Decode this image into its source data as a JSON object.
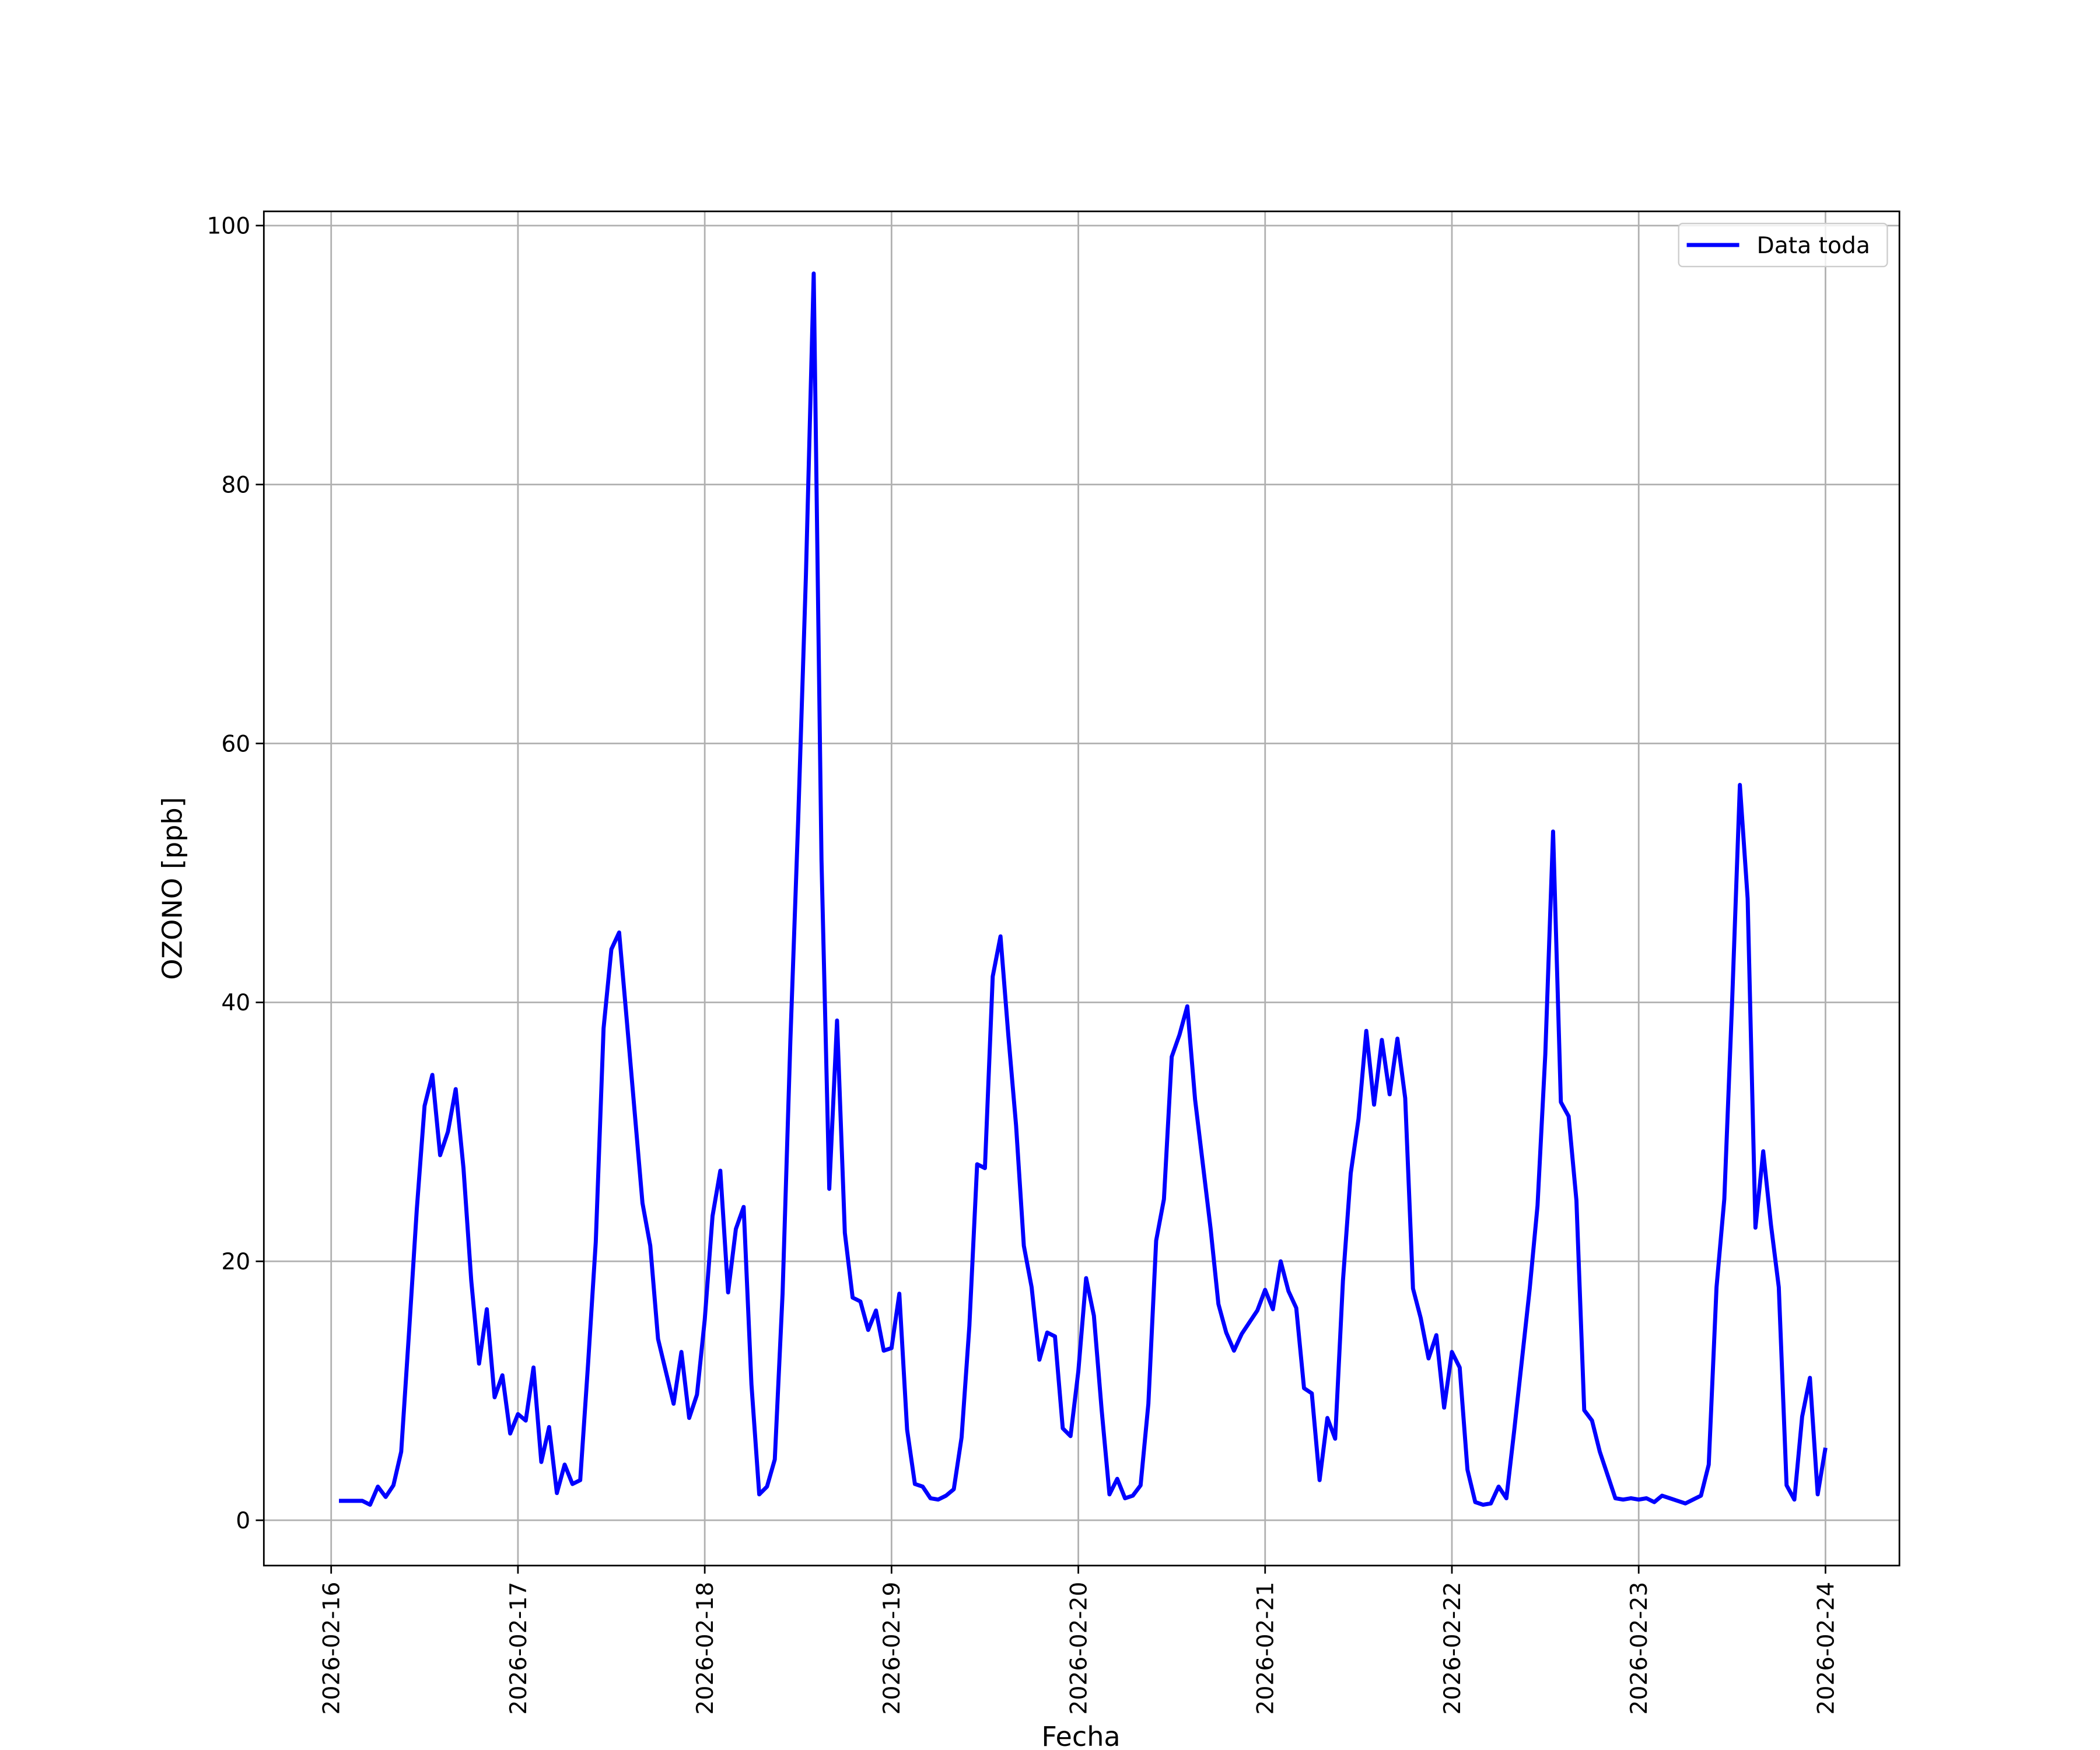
{
  "chart_data": {
    "type": "line",
    "xlabel": "Fecha",
    "ylabel": "OZONO [ppb]",
    "x": [
      "2026-02-16 01:00",
      "2026-02-16 02:00",
      "2026-02-16 03:00",
      "2026-02-16 04:00",
      "2026-02-16 05:00",
      "2026-02-16 06:00",
      "2026-02-16 07:00",
      "2026-02-16 08:00",
      "2026-02-16 09:00",
      "2026-02-16 10:00",
      "2026-02-16 11:00",
      "2026-02-16 12:00",
      "2026-02-16 13:00",
      "2026-02-16 14:00",
      "2026-02-16 15:00",
      "2026-02-16 16:00",
      "2026-02-16 17:00",
      "2026-02-16 18:00",
      "2026-02-16 19:00",
      "2026-02-16 20:00",
      "2026-02-16 21:00",
      "2026-02-16 22:00",
      "2026-02-16 23:00",
      "2026-02-17 00:00",
      "2026-02-17 01:00",
      "2026-02-17 02:00",
      "2026-02-17 03:00",
      "2026-02-17 04:00",
      "2026-02-17 05:00",
      "2026-02-17 06:00",
      "2026-02-17 07:00",
      "2026-02-17 08:00",
      "2026-02-17 09:00",
      "2026-02-17 10:00",
      "2026-02-17 11:00",
      "2026-02-17 12:00",
      "2026-02-17 13:00",
      "2026-02-17 14:00",
      "2026-02-17 15:00",
      "2026-02-17 16:00",
      "2026-02-17 17:00",
      "2026-02-17 18:00",
      "2026-02-17 19:00",
      "2026-02-17 20:00",
      "2026-02-17 21:00",
      "2026-02-17 22:00",
      "2026-02-17 23:00",
      "2026-02-18 00:00",
      "2026-02-18 01:00",
      "2026-02-18 02:00",
      "2026-02-18 03:00",
      "2026-02-18 04:00",
      "2026-02-18 05:00",
      "2026-02-18 06:00",
      "2026-02-18 07:00",
      "2026-02-18 08:00",
      "2026-02-18 09:00",
      "2026-02-18 10:00",
      "2026-02-18 11:00",
      "2026-02-18 12:00",
      "2026-02-18 13:00",
      "2026-02-18 14:00",
      "2026-02-18 15:00",
      "2026-02-18 16:00",
      "2026-02-18 17:00",
      "2026-02-18 18:00",
      "2026-02-18 19:00",
      "2026-02-18 20:00",
      "2026-02-18 21:00",
      "2026-02-18 22:00",
      "2026-02-18 23:00",
      "2026-02-19 00:00",
      "2026-02-19 01:00",
      "2026-02-19 02:00",
      "2026-02-19 03:00",
      "2026-02-19 04:00",
      "2026-02-19 05:00",
      "2026-02-19 06:00",
      "2026-02-19 07:00",
      "2026-02-19 08:00",
      "2026-02-19 09:00",
      "2026-02-19 10:00",
      "2026-02-19 11:00",
      "2026-02-19 12:00",
      "2026-02-19 13:00",
      "2026-02-19 14:00",
      "2026-02-19 15:00",
      "2026-02-19 16:00",
      "2026-02-19 17:00",
      "2026-02-19 18:00",
      "2026-02-19 19:00",
      "2026-02-19 20:00",
      "2026-02-19 21:00",
      "2026-02-19 22:00",
      "2026-02-19 23:00",
      "2026-02-20 00:00",
      "2026-02-20 01:00",
      "2026-02-20 02:00",
      "2026-02-20 03:00",
      "2026-02-20 04:00",
      "2026-02-20 05:00",
      "2026-02-20 06:00",
      "2026-02-20 07:00",
      "2026-02-20 08:00",
      "2026-02-20 09:00",
      "2026-02-20 10:00",
      "2026-02-20 11:00",
      "2026-02-20 12:00",
      "2026-02-20 13:00",
      "2026-02-20 14:00",
      "2026-02-20 15:00",
      "2026-02-20 16:00",
      "2026-02-20 17:00",
      "2026-02-20 18:00",
      "2026-02-20 19:00",
      "2026-02-20 20:00",
      "2026-02-20 21:00",
      "2026-02-20 22:00",
      "2026-02-20 23:00",
      "2026-02-21 00:00",
      "2026-02-21 01:00",
      "2026-02-21 02:00",
      "2026-02-21 03:00",
      "2026-02-21 04:00",
      "2026-02-21 05:00",
      "2026-02-21 06:00",
      "2026-02-21 07:00",
      "2026-02-21 08:00",
      "2026-02-21 09:00",
      "2026-02-21 10:00",
      "2026-02-21 11:00",
      "2026-02-21 12:00",
      "2026-02-21 13:00",
      "2026-02-21 14:00",
      "2026-02-21 15:00",
      "2026-02-21 16:00",
      "2026-02-21 17:00",
      "2026-02-21 18:00",
      "2026-02-21 19:00",
      "2026-02-21 20:00",
      "2026-02-21 21:00",
      "2026-02-21 22:00",
      "2026-02-21 23:00",
      "2026-02-22 00:00",
      "2026-02-22 01:00",
      "2026-02-22 02:00",
      "2026-02-22 03:00",
      "2026-02-22 04:00",
      "2026-02-22 05:00",
      "2026-02-22 06:00",
      "2026-02-22 07:00",
      "2026-02-22 08:00",
      "2026-02-22 09:00",
      "2026-02-22 10:00",
      "2026-02-22 11:00",
      "2026-02-22 12:00",
      "2026-02-22 13:00",
      "2026-02-22 14:00",
      "2026-02-22 15:00",
      "2026-02-22 16:00",
      "2026-02-22 17:00",
      "2026-02-22 18:00",
      "2026-02-22 19:00",
      "2026-02-22 20:00",
      "2026-02-22 21:00",
      "2026-02-22 22:00",
      "2026-02-22 23:00",
      "2026-02-23 00:00",
      "2026-02-23 01:00",
      "2026-02-23 02:00",
      "2026-02-23 03:00",
      "2026-02-23 04:00",
      "2026-02-23 05:00",
      "2026-02-23 06:00",
      "2026-02-23 07:00",
      "2026-02-23 08:00",
      "2026-02-23 09:00",
      "2026-02-23 10:00",
      "2026-02-23 11:00",
      "2026-02-23 12:00",
      "2026-02-23 13:00",
      "2026-02-23 14:00",
      "2026-02-23 15:00",
      "2026-02-23 16:00",
      "2026-02-23 17:00",
      "2026-02-23 18:00",
      "2026-02-23 19:00",
      "2026-02-23 20:00",
      "2026-02-23 21:00",
      "2026-02-23 22:00",
      "2026-02-23 23:00",
      "2026-02-24 00:00"
    ],
    "series": [
      {
        "name": "Data toda",
        "color": "#0000ff",
        "values": [
          1.5,
          1.5,
          1.5,
          1.5,
          1.2,
          2.6,
          1.8,
          2.7,
          5.3,
          14.5,
          24,
          32,
          34.4,
          28.2,
          30,
          33.3,
          27.2,
          18.5,
          12.1,
          16.3,
          9.5,
          11.2,
          6.7,
          8.2,
          7.7,
          11.8,
          4.5,
          7.2,
          2.1,
          4.3,
          2.8,
          3.1,
          12,
          21.5,
          38,
          44.1,
          45.4,
          38.5,
          31.5,
          24.5,
          21.2,
          14,
          11.5,
          9,
          13,
          7.9,
          9.7,
          15.5,
          23.5,
          27,
          17.6,
          22.5,
          24.2,
          10.5,
          2,
          2.6,
          4.7,
          17.5,
          37,
          54,
          73,
          96.3,
          51,
          25.6,
          38.6,
          22.2,
          17.2,
          16.9,
          14.7,
          16.2,
          13.1,
          13.3,
          17.5,
          7,
          2.8,
          2.6,
          1.7,
          1.6,
          1.9,
          2.4,
          6.4,
          15,
          27.5,
          27.2,
          42,
          45.1,
          37.5,
          30.5,
          21.2,
          18,
          12.4,
          14.5,
          14.2,
          7.1,
          6.5,
          11.5,
          18.7,
          15.8,
          8.5,
          2,
          3.2,
          1.7,
          1.9,
          2.7,
          9,
          21.6,
          24.8,
          35.8,
          37.5,
          39.7,
          32.5,
          27.5,
          22.5,
          16.7,
          14.5,
          13.1,
          14.4,
          15.3,
          16.2,
          17.8,
          16.3,
          20,
          17.7,
          16.4,
          10.2,
          9.8,
          3.1,
          7.9,
          6.3,
          18.5,
          26.8,
          31,
          37.8,
          32.1,
          37.1,
          32.9,
          37.2,
          32.6,
          17.9,
          15.6,
          12.5,
          14.3,
          8.7,
          13,
          11.8,
          3.9,
          1.4,
          1.2,
          1.3,
          2.6,
          1.7,
          6.9,
          12.4,
          17.9,
          24.3,
          36,
          53.2,
          32.3,
          31.2,
          24.7,
          8.5,
          7.7,
          5.3,
          3.5,
          1.7,
          1.6,
          1.7,
          1.6,
          1.7,
          1.4,
          1.9,
          1.7,
          1.5,
          1.3,
          1.6,
          1.9,
          4.3,
          18,
          24.8,
          40,
          56.8,
          48,
          22.6,
          28.5,
          22.8,
          18,
          2.7,
          1.6,
          8,
          11,
          2,
          5.6
        ]
      }
    ],
    "xlim": [
      "2026-02-15 15:21",
      "2026-02-24 09:30"
    ],
    "xticks": [
      "2026-02-16",
      "2026-02-17",
      "2026-02-18",
      "2026-02-19",
      "2026-02-20",
      "2026-02-21",
      "2026-02-22",
      "2026-02-23",
      "2026-02-24"
    ],
    "ylim": [
      -3.5,
      101.1
    ],
    "yticks": [
      0,
      20,
      40,
      60,
      80,
      100
    ],
    "grid": true,
    "legend": "upper right"
  }
}
